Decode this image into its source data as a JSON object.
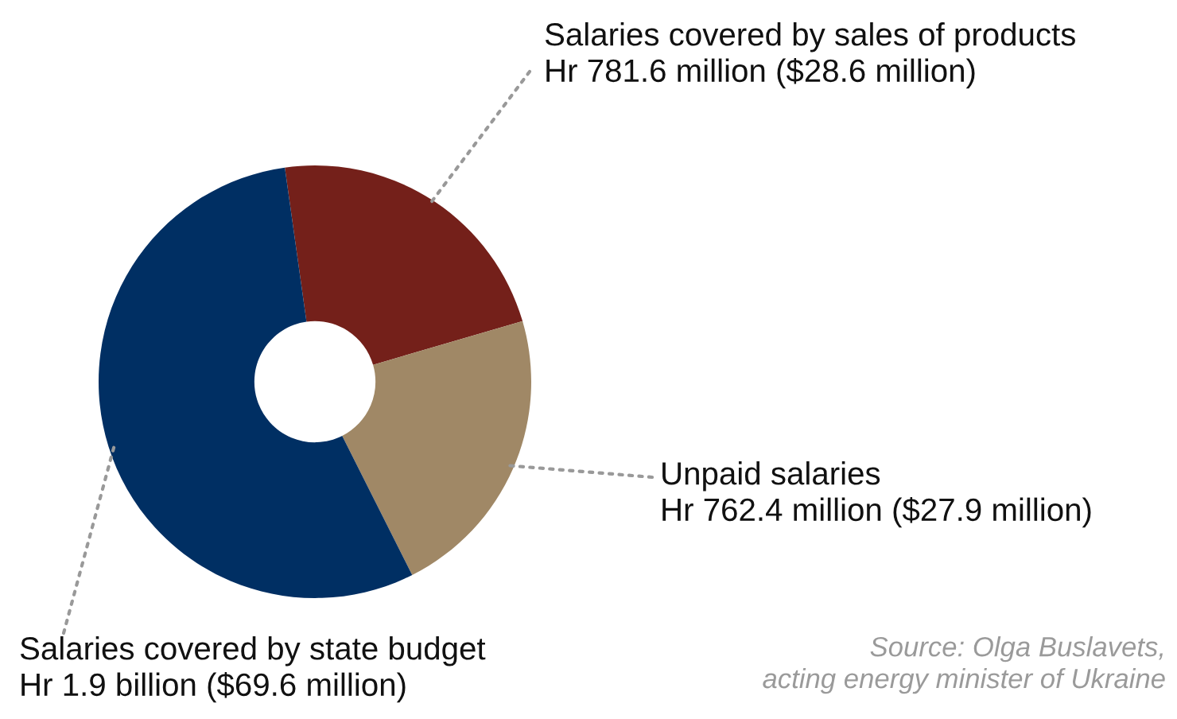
{
  "chart_data": {
    "type": "donut",
    "categories": [
      "Salaries covered by sales of products",
      "Unpaid salaries",
      "Salaries covered by state budget"
    ],
    "values": [
      22.7,
      22.1,
      55.2
    ],
    "value_labels": [
      "Hr 781.6 million ($28.6 million)",
      "Hr 762.4 million ($27.9 million)",
      "Hr 1.9 billion ($69.6 million)"
    ],
    "colors": [
      "#74201a",
      "#a08866",
      "#002f63"
    ],
    "legend": false,
    "annotations": [
      "Source: Olga Buslavets,\nacting energy minister of Ukraine"
    ]
  }
}
